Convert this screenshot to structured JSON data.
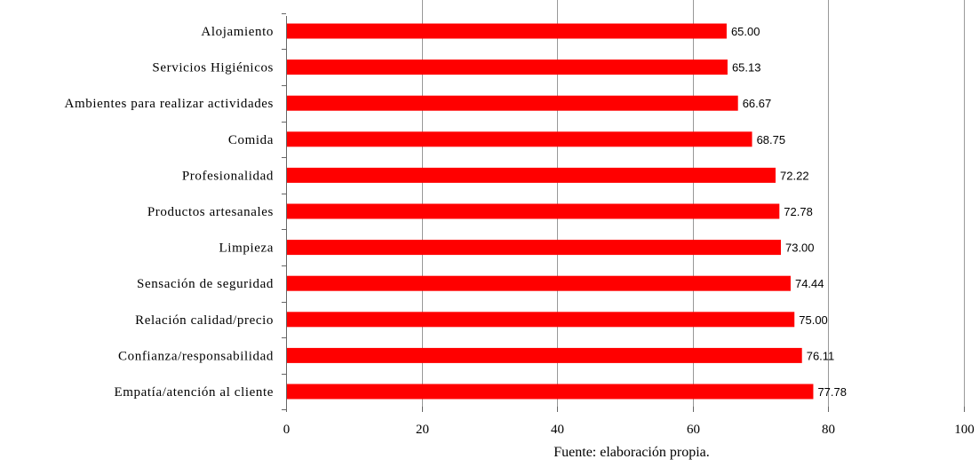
{
  "chart_data": {
    "type": "bar",
    "orientation": "horizontal",
    "title": "",
    "xlabel": "",
    "ylabel": "",
    "xlim": [
      0,
      100
    ],
    "xticks": [
      0,
      20,
      40,
      60,
      80,
      100
    ],
    "grid": "vertical",
    "bar_color": "#ff0000",
    "categories": [
      "Alojamiento",
      "Servicios Higiénicos",
      "Ambientes para realizar actividades",
      "Comida",
      "Profesionalidad",
      "Productos artesanales",
      "Limpieza",
      "Sensación de seguridad",
      "Relación calidad/precio",
      "Confianza/responsabilidad",
      "Empatía/atención al cliente"
    ],
    "values": [
      65.0,
      65.13,
      66.67,
      68.75,
      72.22,
      72.78,
      73.0,
      74.44,
      75.0,
      76.11,
      77.78
    ],
    "value_labels": [
      "65.00",
      "65.13",
      "66.67",
      "68.75",
      "72.22",
      "72.78",
      "73.00",
      "74.44",
      "75.00",
      "76.11",
      "77.78"
    ]
  },
  "source_note": "Fuente: elaboración propia."
}
